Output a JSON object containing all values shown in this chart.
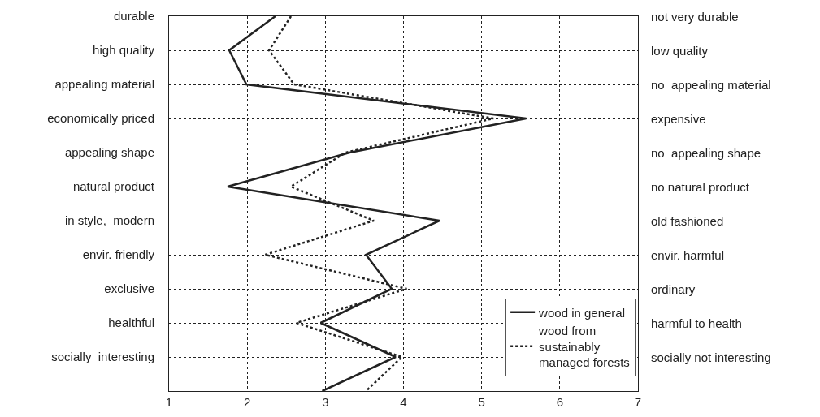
{
  "chart_data": {
    "type": "line",
    "orientation": "horizontal",
    "categories": [
      "durable",
      "high quality",
      "appealing material",
      "economically priced",
      "appealing shape",
      "natural product",
      "in style,  modern",
      "envir. friendly",
      "exclusive",
      "healthful",
      "socially  interesting",
      null
    ],
    "y2_categories": [
      "not very durable",
      "low quality",
      "no  appealing material",
      "expensive",
      "no  appealing shape",
      "no natural product",
      "old fashioned",
      "envir. harmful",
      "ordinary",
      "harmful to health",
      "socially not interesting",
      null
    ],
    "series": [
      {
        "name": "wood in general",
        "color": "#222222",
        "line_style": "solid",
        "values": [
          2.36,
          1.77,
          1.99,
          5.57,
          3.31,
          1.75,
          4.46,
          3.52,
          3.85,
          2.94,
          3.9,
          2.96
        ]
      },
      {
        "name": "wood from sustainably managed forests",
        "color": "#222222",
        "line_style": "dotted",
        "values": [
          2.56,
          2.28,
          2.6,
          5.15,
          3.26,
          2.56,
          3.62,
          2.23,
          4.04,
          2.63,
          3.98,
          3.52
        ]
      }
    ],
    "xlim": [
      1,
      7
    ],
    "xticks": [
      1,
      2,
      3,
      4,
      5,
      6,
      7
    ],
    "grid": true,
    "legend": "bottom right",
    "marker": "none"
  }
}
